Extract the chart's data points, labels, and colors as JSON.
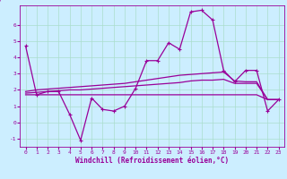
{
  "xlabel": "Windchill (Refroidissement éolien,°C)",
  "bg_color": "#cceeff",
  "grid_color": "#aaddcc",
  "line_color": "#990099",
  "xlim": [
    -0.5,
    23.5
  ],
  "ylim": [
    -1.5,
    7.2
  ],
  "yticks": [
    -1,
    0,
    1,
    2,
    3,
    4,
    5,
    6
  ],
  "xticks": [
    0,
    1,
    2,
    3,
    4,
    5,
    6,
    7,
    8,
    9,
    10,
    11,
    12,
    13,
    14,
    15,
    16,
    17,
    18,
    19,
    20,
    21,
    22,
    23
  ],
  "line1_x": [
    0,
    1,
    2,
    3,
    4,
    5,
    6,
    7,
    8,
    9,
    10,
    11,
    12,
    13,
    14,
    15,
    16,
    17,
    18,
    19,
    20,
    21,
    22,
    23
  ],
  "line1_y": [
    4.7,
    1.7,
    1.9,
    1.9,
    0.5,
    -1.1,
    1.5,
    0.8,
    0.7,
    1.0,
    2.1,
    3.8,
    3.8,
    4.9,
    4.5,
    6.8,
    6.9,
    6.3,
    3.2,
    2.5,
    3.2,
    3.2,
    0.7,
    1.4
  ],
  "line_flat_x": [
    0,
    1,
    2,
    3,
    4,
    5,
    6,
    7,
    8,
    9,
    10,
    11,
    12,
    13,
    14,
    15,
    16,
    17,
    18,
    19,
    20,
    21,
    22,
    23
  ],
  "line_flat_y": [
    1.7,
    1.7,
    1.7,
    1.7,
    1.7,
    1.7,
    1.7,
    1.7,
    1.7,
    1.7,
    1.7,
    1.7,
    1.7,
    1.7,
    1.7,
    1.7,
    1.7,
    1.7,
    1.7,
    1.7,
    1.7,
    1.7,
    1.4,
    1.4
  ],
  "line_mid_x": [
    0,
    1,
    2,
    3,
    4,
    5,
    6,
    7,
    8,
    9,
    10,
    11,
    12,
    13,
    14,
    15,
    16,
    17,
    18,
    19,
    20,
    21,
    22,
    23
  ],
  "line_mid_y": [
    1.8,
    1.85,
    1.9,
    1.95,
    2.0,
    2.0,
    2.05,
    2.1,
    2.15,
    2.2,
    2.25,
    2.3,
    2.35,
    2.4,
    2.45,
    2.55,
    2.6,
    2.6,
    2.65,
    2.4,
    2.4,
    2.4,
    1.4,
    1.4
  ],
  "line_top_x": [
    0,
    1,
    2,
    3,
    4,
    5,
    6,
    7,
    8,
    9,
    10,
    11,
    12,
    13,
    14,
    15,
    16,
    17,
    18,
    19,
    20,
    21,
    22,
    23
  ],
  "line_top_y": [
    1.9,
    2.0,
    2.05,
    2.1,
    2.15,
    2.2,
    2.25,
    2.3,
    2.35,
    2.4,
    2.5,
    2.6,
    2.7,
    2.8,
    2.9,
    2.95,
    3.0,
    3.05,
    3.1,
    2.55,
    2.5,
    2.5,
    1.4,
    1.4
  ]
}
